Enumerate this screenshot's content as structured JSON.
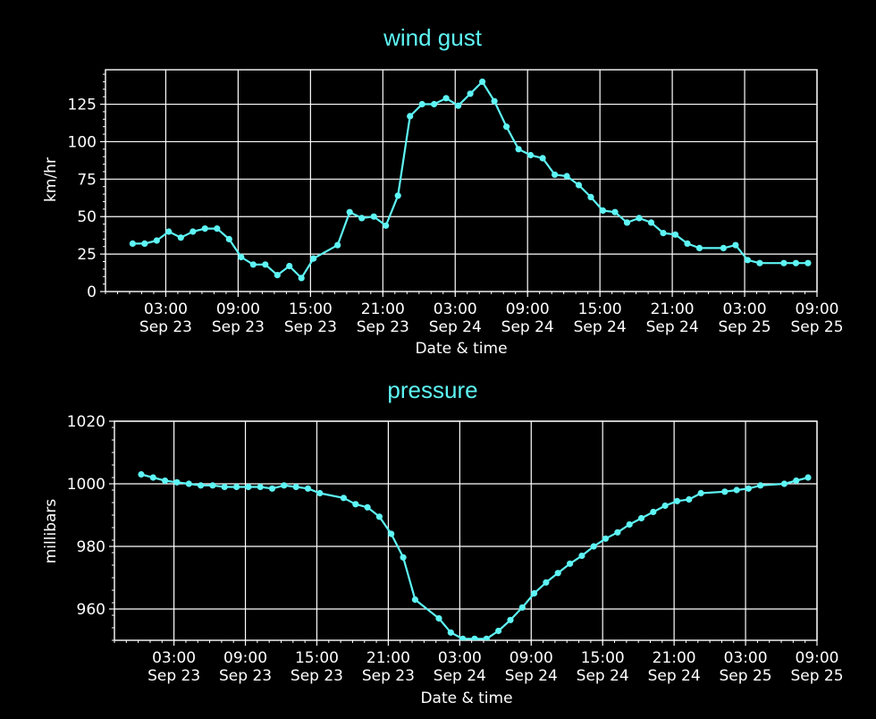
{
  "colors": {
    "background": "#000000",
    "series": "#5ef5f5",
    "axes": "#ffffff",
    "grid": "#ffffff"
  },
  "chart_data": [
    {
      "type": "line",
      "title": "wind gust",
      "xlabel": "Date & time",
      "ylabel": "km/hr",
      "ylim": [
        0,
        148
      ],
      "yticks": [
        0,
        25,
        50,
        75,
        100,
        125
      ],
      "grid": true,
      "x_ticks": [
        {
          "value": "2023-09-23 03:00",
          "time": "03:00",
          "date": "Sep 23"
        },
        {
          "value": "2023-09-23 09:00",
          "time": "09:00",
          "date": "Sep 23"
        },
        {
          "value": "2023-09-23 15:00",
          "time": "15:00",
          "date": "Sep 23"
        },
        {
          "value": "2023-09-23 21:00",
          "time": "21:00",
          "date": "Sep 23"
        },
        {
          "value": "2023-09-24 03:00",
          "time": "03:00",
          "date": "Sep 24"
        },
        {
          "value": "2023-09-24 09:00",
          "time": "09:00",
          "date": "Sep 24"
        },
        {
          "value": "2023-09-24 15:00",
          "time": "15:00",
          "date": "Sep 24"
        },
        {
          "value": "2023-09-24 21:00",
          "time": "21:00",
          "date": "Sep 24"
        },
        {
          "value": "2023-09-25 03:00",
          "time": "03:00",
          "date": "Sep 25"
        },
        {
          "value": "2023-09-25 09:00",
          "time": "09:00",
          "date": "Sep 25"
        }
      ],
      "x_range": [
        "2023-09-22 22:00",
        "2023-09-25 09:00"
      ],
      "series": [
        {
          "x": [
            "2023-09-23 00:15",
            "2023-09-23 01:15",
            "2023-09-23 02:15",
            "2023-09-23 03:15",
            "2023-09-23 04:15",
            "2023-09-23 05:15",
            "2023-09-23 06:15",
            "2023-09-23 07:15",
            "2023-09-23 08:15",
            "2023-09-23 09:15",
            "2023-09-23 10:15",
            "2023-09-23 11:15",
            "2023-09-23 12:15",
            "2023-09-23 13:15",
            "2023-09-23 14:15",
            "2023-09-23 15:15",
            "2023-09-23 17:15",
            "2023-09-23 18:15",
            "2023-09-23 19:15",
            "2023-09-23 20:15",
            "2023-09-23 21:15",
            "2023-09-23 22:15",
            "2023-09-23 23:15",
            "2023-09-24 00:15",
            "2023-09-24 01:15",
            "2023-09-24 02:15",
            "2023-09-24 03:15",
            "2023-09-24 04:15",
            "2023-09-24 05:15",
            "2023-09-24 06:15",
            "2023-09-24 07:15",
            "2023-09-24 08:15",
            "2023-09-24 09:15",
            "2023-09-24 10:15",
            "2023-09-24 11:15",
            "2023-09-24 12:15",
            "2023-09-24 13:15",
            "2023-09-24 14:15",
            "2023-09-24 15:15",
            "2023-09-24 16:15",
            "2023-09-24 17:15",
            "2023-09-24 18:15",
            "2023-09-24 19:15",
            "2023-09-24 20:15",
            "2023-09-24 21:15",
            "2023-09-24 22:15",
            "2023-09-24 23:15",
            "2023-09-25 01:15",
            "2023-09-25 02:15",
            "2023-09-25 03:15",
            "2023-09-25 04:15",
            "2023-09-25 06:15",
            "2023-09-25 07:15",
            "2023-09-25 08:15"
          ],
          "values": [
            32,
            32,
            34,
            40,
            36,
            40,
            42,
            42,
            35,
            23,
            18,
            18,
            11,
            17,
            9,
            22,
            31,
            53,
            49,
            50,
            44,
            64,
            117,
            125,
            125,
            129,
            124,
            132,
            140,
            127,
            110,
            95,
            91,
            89,
            78,
            77,
            71,
            63,
            54,
            53,
            46,
            49,
            46,
            39,
            38,
            32,
            29,
            29,
            31,
            21,
            19,
            19,
            19,
            19
          ]
        }
      ]
    },
    {
      "type": "line",
      "title": "pressure",
      "xlabel": "Date & time",
      "ylabel": "millibars",
      "ylim": [
        950,
        1020
      ],
      "yticks": [
        960,
        980,
        1000,
        1020
      ],
      "grid": true,
      "x_ticks": [
        {
          "value": "2023-09-23 03:00",
          "time": "03:00",
          "date": "Sep 23"
        },
        {
          "value": "2023-09-23 09:00",
          "time": "09:00",
          "date": "Sep 23"
        },
        {
          "value": "2023-09-23 15:00",
          "time": "15:00",
          "date": "Sep 23"
        },
        {
          "value": "2023-09-23 21:00",
          "time": "21:00",
          "date": "Sep 23"
        },
        {
          "value": "2023-09-24 03:00",
          "time": "03:00",
          "date": "Sep 24"
        },
        {
          "value": "2023-09-24 09:00",
          "time": "09:00",
          "date": "Sep 24"
        },
        {
          "value": "2023-09-24 15:00",
          "time": "15:00",
          "date": "Sep 24"
        },
        {
          "value": "2023-09-24 21:00",
          "time": "21:00",
          "date": "Sep 24"
        },
        {
          "value": "2023-09-25 03:00",
          "time": "03:00",
          "date": "Sep 25"
        },
        {
          "value": "2023-09-25 09:00",
          "time": "09:00",
          "date": "Sep 25"
        }
      ],
      "x_range": [
        "2023-09-22 22:00",
        "2023-09-25 09:00"
      ],
      "series": [
        {
          "x": [
            "2023-09-23 00:15",
            "2023-09-23 01:15",
            "2023-09-23 02:15",
            "2023-09-23 03:15",
            "2023-09-23 04:15",
            "2023-09-23 05:15",
            "2023-09-23 06:15",
            "2023-09-23 07:15",
            "2023-09-23 08:15",
            "2023-09-23 09:15",
            "2023-09-23 10:15",
            "2023-09-23 11:15",
            "2023-09-23 12:15",
            "2023-09-23 13:15",
            "2023-09-23 14:15",
            "2023-09-23 15:15",
            "2023-09-23 17:15",
            "2023-09-23 18:15",
            "2023-09-23 19:15",
            "2023-09-23 20:15",
            "2023-09-23 21:15",
            "2023-09-23 22:15",
            "2023-09-23 23:15",
            "2023-09-24 01:15",
            "2023-09-24 02:15",
            "2023-09-24 03:15",
            "2023-09-24 04:15",
            "2023-09-24 05:15",
            "2023-09-24 06:15",
            "2023-09-24 07:15",
            "2023-09-24 08:15",
            "2023-09-24 09:15",
            "2023-09-24 10:15",
            "2023-09-24 11:15",
            "2023-09-24 12:15",
            "2023-09-24 13:15",
            "2023-09-24 14:15",
            "2023-09-24 15:15",
            "2023-09-24 16:15",
            "2023-09-24 17:15",
            "2023-09-24 18:15",
            "2023-09-24 19:15",
            "2023-09-24 20:15",
            "2023-09-24 21:15",
            "2023-09-24 22:15",
            "2023-09-24 23:15",
            "2023-09-25 01:15",
            "2023-09-25 02:15",
            "2023-09-25 03:15",
            "2023-09-25 04:15",
            "2023-09-25 06:15",
            "2023-09-25 07:15",
            "2023-09-25 08:15"
          ],
          "values": [
            1003,
            1002,
            1001,
            1000.5,
            1000,
            999.5,
            999.5,
            999,
            999,
            999,
            999,
            998.5,
            999.5,
            999,
            998.5,
            997,
            995.5,
            993.5,
            992.5,
            989.5,
            984,
            976.5,
            963,
            957,
            952.5,
            950.5,
            950.5,
            950.5,
            953,
            956.5,
            960.5,
            965,
            968.5,
            971.5,
            974.5,
            977,
            980,
            982.5,
            984.5,
            987,
            989,
            991,
            993,
            994.5,
            995,
            997,
            997.5,
            998,
            998.5,
            999.5,
            1000,
            1001,
            1002
          ]
        }
      ]
    }
  ]
}
